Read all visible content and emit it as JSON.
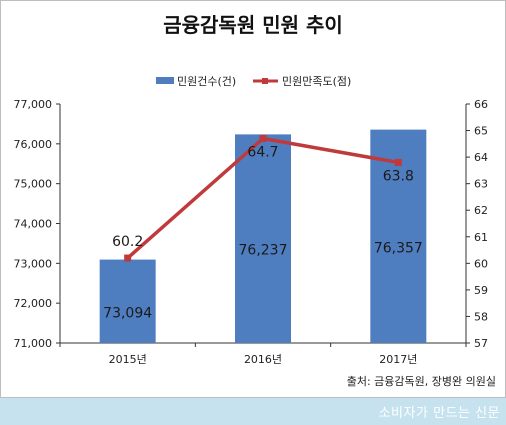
{
  "chart_data": {
    "type": "bar+line",
    "title": "금융감독원 민원 추이",
    "categories": [
      "2015년",
      "2016년",
      "2017년"
    ],
    "series": [
      {
        "name": "민원건수(건)",
        "kind": "bar",
        "axis": "left",
        "values": [
          73094,
          76237,
          76357
        ],
        "labels": [
          "73,094",
          "76,237",
          "76,357"
        ]
      },
      {
        "name": "민원만족도(점)",
        "kind": "line",
        "axis": "right",
        "values": [
          60.2,
          64.7,
          63.8
        ],
        "labels": [
          "60.2",
          "64.7",
          "63.8"
        ]
      }
    ],
    "y_left": {
      "min": 71000,
      "max": 77000,
      "step": 1000,
      "ticks": [
        "71,000",
        "72,000",
        "73,000",
        "74,000",
        "75,000",
        "76,000",
        "77,000"
      ]
    },
    "y_right": {
      "min": 57,
      "max": 66,
      "step": 1,
      "ticks": [
        "57",
        "58",
        "59",
        "60",
        "61",
        "62",
        "63",
        "64",
        "65",
        "66"
      ]
    },
    "legend_position": "top-center",
    "grid": false,
    "colors": {
      "bar": "#4f7ec0",
      "line": "#c0393b",
      "marker": "#c0393b"
    }
  },
  "source": "출처: 금융감독원, 장병완 의원실",
  "footer": {
    "brand": "소비자가 만드는 신문"
  }
}
